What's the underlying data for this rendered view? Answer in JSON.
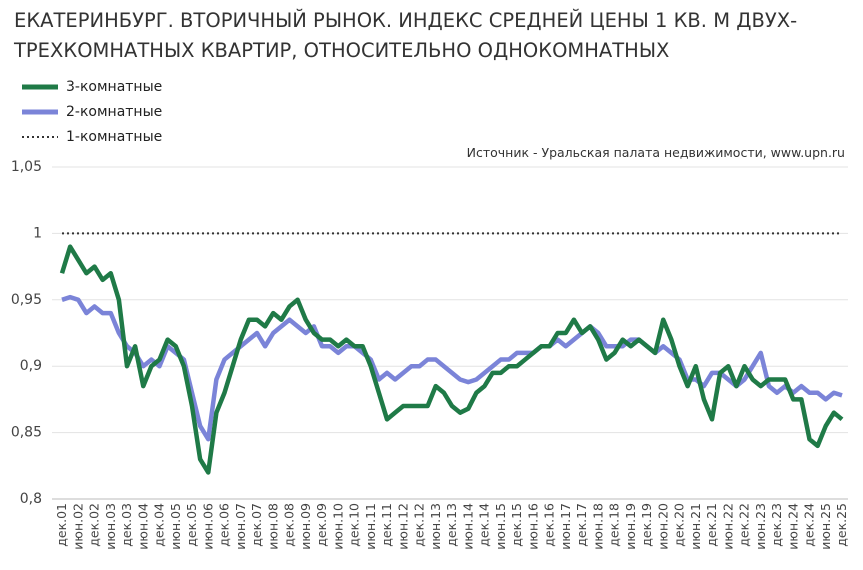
{
  "chart_data": {
    "type": "line",
    "title": "ЕКАТЕРИНБУРГ. ВТОРИЧНЫЙ РЫНОК. ИНДЕКС СРЕДНЕЙ ЦЕНЫ 1 КВ. М ДВУХ-ТРЕХКОМНАТНЫХ КВАРТИР, ОТНОСИТЕЛЬНО ОДНОКОМНАТНЫХ",
    "source": "Источник - Уральская палата недвижимости, www.upn.ru",
    "categories": [
      "дек.01",
      null,
      "июн.02",
      null,
      "дек.02",
      null,
      "июн.03",
      null,
      "дек.03",
      null,
      "июн.04",
      null,
      "дек.04",
      null,
      "июн.05",
      null,
      "дек.05",
      null,
      "июн.06",
      null,
      "дек.06",
      null,
      "июн.07",
      null,
      "дек.07",
      null,
      "июн.08",
      null,
      "дек.08",
      null,
      "июн.09",
      null,
      "дек.09",
      null,
      "июн.10",
      null,
      "дек.10",
      null,
      "июн.11",
      null,
      "дек.11",
      null,
      "июн.12",
      null,
      "дек.12",
      null,
      "июн.13",
      null,
      "дек.13",
      null,
      "июн.14",
      null,
      "дек.14",
      null,
      "июн.15",
      null,
      "дек.15",
      null,
      "июн.16",
      null,
      "дек.16",
      null,
      "июн.17",
      null,
      "дек.17",
      null,
      "июн.18",
      null,
      "дек.18",
      null,
      "июн.19",
      null,
      "дек.19",
      null,
      "июн.20",
      null,
      "дек.20",
      null,
      "июн.21",
      null,
      "дек.21",
      null,
      "июн.22",
      null,
      "дек.22",
      null,
      "июн.23",
      null,
      "дек.23",
      null,
      "июн.24",
      null,
      "дек.24",
      null,
      "июн.25",
      null,
      "дек.25"
    ],
    "series": [
      {
        "name": "3-комнатные",
        "color": "#1f7a47",
        "style": "solid",
        "values": [
          0.97,
          0.99,
          0.98,
          0.97,
          0.975,
          0.965,
          0.97,
          0.95,
          0.9,
          0.915,
          0.885,
          0.9,
          0.905,
          0.92,
          0.915,
          0.9,
          0.87,
          0.83,
          0.82,
          0.865,
          0.88,
          0.9,
          0.92,
          0.935,
          0.935,
          0.93,
          0.94,
          0.935,
          0.945,
          0.95,
          0.935,
          0.925,
          0.92,
          0.92,
          0.915,
          0.92,
          0.915,
          0.915,
          0.9,
          0.88,
          0.86,
          0.865,
          0.87,
          0.87,
          0.87,
          0.87,
          0.885,
          0.88,
          0.87,
          0.865,
          0.868,
          0.88,
          0.885,
          0.895,
          0.895,
          0.9,
          0.9,
          0.905,
          0.91,
          0.915,
          0.915,
          0.925,
          0.925,
          0.935,
          0.925,
          0.93,
          0.92,
          0.905,
          0.91,
          0.92,
          0.915,
          0.92,
          0.915,
          0.91,
          0.935,
          0.92,
          0.9,
          0.885,
          0.9,
          0.875,
          0.86,
          0.895,
          0.9,
          0.885,
          0.9,
          0.89,
          0.885,
          0.89,
          0.89,
          0.89,
          0.875,
          0.875,
          0.845,
          0.84,
          0.855,
          0.865,
          0.86
        ]
      },
      {
        "name": "2-комнатные",
        "color": "#7b84d8",
        "style": "solid",
        "values": [
          0.95,
          0.952,
          0.95,
          0.94,
          0.945,
          0.94,
          0.94,
          0.925,
          0.915,
          0.91,
          0.9,
          0.905,
          0.9,
          0.915,
          0.91,
          0.905,
          0.88,
          0.855,
          0.845,
          0.89,
          0.905,
          0.91,
          0.915,
          0.92,
          0.925,
          0.915,
          0.925,
          0.93,
          0.935,
          0.93,
          0.925,
          0.93,
          0.915,
          0.915,
          0.91,
          0.915,
          0.915,
          0.91,
          0.905,
          0.89,
          0.895,
          0.89,
          0.895,
          0.9,
          0.9,
          0.905,
          0.905,
          0.9,
          0.895,
          0.89,
          0.888,
          0.89,
          0.895,
          0.9,
          0.905,
          0.905,
          0.91,
          0.91,
          0.91,
          0.915,
          0.915,
          0.92,
          0.915,
          0.92,
          0.925,
          0.93,
          0.925,
          0.915,
          0.915,
          0.915,
          0.92,
          0.92,
          0.915,
          0.91,
          0.915,
          0.91,
          0.905,
          0.89,
          0.89,
          0.885,
          0.895,
          0.895,
          0.89,
          0.885,
          0.89,
          0.9,
          0.91,
          0.885,
          0.88,
          0.885,
          0.88,
          0.885,
          0.88,
          0.88,
          0.875,
          0.88,
          0.878
        ]
      },
      {
        "name": "1-комнатные",
        "color": "#333333",
        "style": "dotted",
        "values": [
          1,
          1,
          1,
          1,
          1,
          1,
          1,
          1,
          1,
          1,
          1,
          1,
          1,
          1,
          1,
          1,
          1,
          1,
          1,
          1,
          1,
          1,
          1,
          1,
          1,
          1,
          1,
          1,
          1,
          1,
          1,
          1,
          1,
          1,
          1,
          1,
          1,
          1,
          1,
          1,
          1,
          1,
          1,
          1,
          1,
          1,
          1,
          1,
          1,
          1,
          1,
          1,
          1,
          1,
          1,
          1,
          1,
          1,
          1,
          1,
          1,
          1,
          1,
          1,
          1,
          1,
          1,
          1,
          1,
          1,
          1,
          1,
          1,
          1,
          1,
          1,
          1,
          1,
          1,
          1,
          1,
          1,
          1,
          1,
          1,
          1,
          1,
          1,
          1,
          1,
          1,
          1,
          1,
          1,
          1,
          1,
          1
        ]
      }
    ],
    "ylim": [
      0.8,
      1.05
    ],
    "yticks": [
      {
        "value": 0.8,
        "label": "0,8"
      },
      {
        "value": 0.85,
        "label": "0,85"
      },
      {
        "value": 0.9,
        "label": "0,9"
      },
      {
        "value": 0.95,
        "label": "0,95"
      },
      1,
      {
        "value": 1.05,
        "label": "1,05"
      }
    ],
    "grid": true
  }
}
